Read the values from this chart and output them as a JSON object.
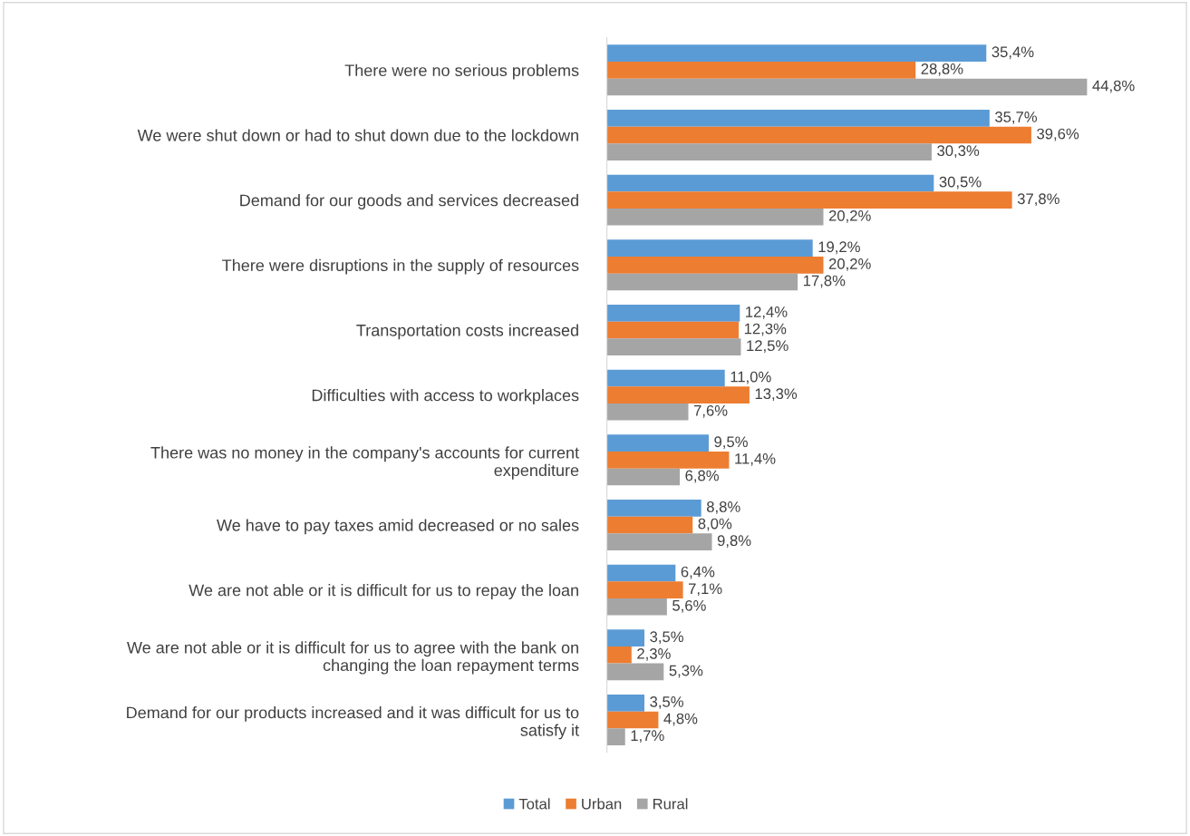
{
  "chart_data": {
    "type": "bar",
    "orientation": "horizontal",
    "categories": [
      "There were no serious problems",
      "We were shut down or had to shut down due to the lockdown",
      "Demand for our goods and services decreased",
      "There were disruptions in the supply of resources",
      "Transportation costs increased",
      "Difficulties with access to workplaces",
      "There was no money in the company's accounts for current\nexpenditure",
      "We have to pay taxes amid decreased or no sales",
      "We are not able or it is difficult for us to repay the loan",
      "We are not able or it is difficult for us to agree with the bank on\nchanging the loan repayment terms",
      "Demand for our products increased and it was difficult for us to\nsatisfy it"
    ],
    "series": [
      {
        "name": "Total",
        "color": "#5b9bd5",
        "values": [
          35.4,
          35.7,
          30.5,
          19.2,
          12.4,
          11.0,
          9.5,
          8.8,
          6.4,
          3.5,
          3.5
        ],
        "value_labels": [
          "35,4%",
          "35,7%",
          "30,5%",
          "19,2%",
          "12,4%",
          "11,0%",
          "9,5%",
          "8,8%",
          "6,4%",
          "3,5%",
          "3,5%"
        ]
      },
      {
        "name": "Urban",
        "color": "#ed7d31",
        "values": [
          28.8,
          39.6,
          37.8,
          20.2,
          12.3,
          13.3,
          11.4,
          8.0,
          7.1,
          2.3,
          4.8
        ],
        "value_labels": [
          "28,8%",
          "39,6%",
          "37,8%",
          "20,2%",
          "12,3%",
          "13,3%",
          "11,4%",
          "8,0%",
          "7,1%",
          "2,3%",
          "4,8%"
        ]
      },
      {
        "name": "Rural",
        "color": "#a5a5a5",
        "values": [
          44.8,
          30.3,
          20.2,
          17.8,
          12.5,
          7.6,
          6.8,
          9.8,
          5.6,
          5.3,
          1.7
        ],
        "value_labels": [
          "44,8%",
          "30,3%",
          "20,2%",
          "17,8%",
          "12,5%",
          "7,6%",
          "6,8%",
          "9,8%",
          "5,6%",
          "5,3%",
          "1,7%"
        ]
      }
    ],
    "legend": "bottom",
    "grid": false
  }
}
